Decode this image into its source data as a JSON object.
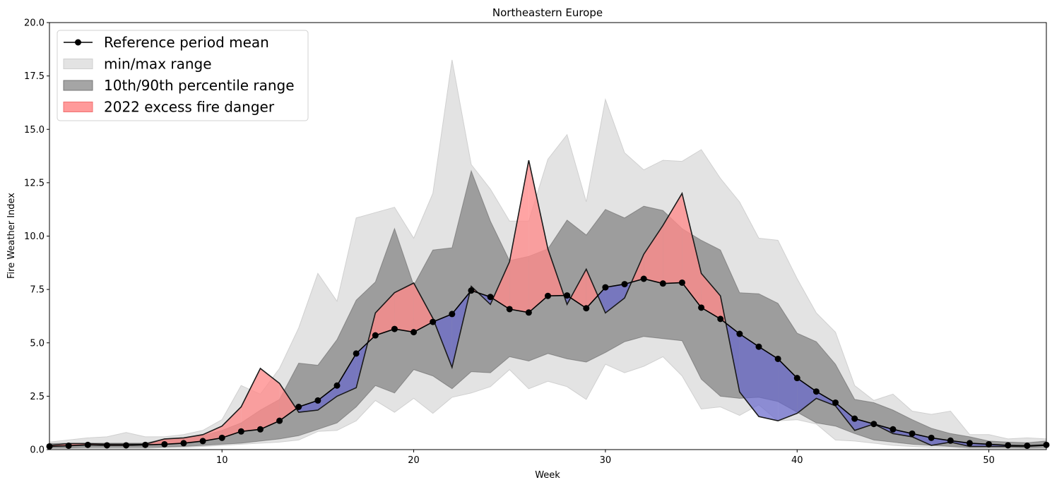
{
  "chart_data": {
    "type": "area",
    "title": "Northeastern Europe",
    "xlabel": "Week",
    "ylabel": "Fire Weather Index",
    "xlim": [
      1,
      53
    ],
    "ylim": [
      0,
      20
    ],
    "xticks": [
      10,
      20,
      30,
      40,
      50
    ],
    "yticks": [
      "0.0",
      "2.5",
      "5.0",
      "7.5",
      "10.0",
      "12.5",
      "15.0",
      "17.5",
      "20.0"
    ],
    "legend_position": "upper-left",
    "grid": false,
    "x": [
      1,
      2,
      3,
      4,
      5,
      6,
      7,
      8,
      9,
      10,
      11,
      12,
      13,
      14,
      15,
      16,
      17,
      18,
      19,
      20,
      21,
      22,
      23,
      24,
      25,
      26,
      27,
      28,
      29,
      30,
      31,
      32,
      33,
      34,
      35,
      36,
      37,
      38,
      39,
      40,
      41,
      42,
      43,
      44,
      45,
      46,
      47,
      48,
      49,
      50,
      51,
      52,
      53
    ],
    "series": [
      {
        "name": "Reference period mean",
        "kind": "line",
        "color": "#000000",
        "values": [
          0.15,
          0.18,
          0.22,
          0.2,
          0.2,
          0.22,
          0.25,
          0.3,
          0.4,
          0.55,
          0.85,
          0.95,
          1.35,
          2.0,
          2.3,
          3.0,
          4.5,
          5.35,
          5.65,
          5.5,
          5.98,
          6.35,
          7.45,
          7.15,
          6.58,
          6.42,
          7.2,
          7.22,
          6.62,
          7.6,
          7.75,
          8.0,
          7.78,
          7.82,
          6.65,
          6.12,
          5.42,
          4.82,
          4.25,
          3.35,
          2.72,
          2.2,
          1.45,
          1.2,
          0.95,
          0.75,
          0.55,
          0.42,
          0.3,
          0.25,
          0.2,
          0.18,
          0.22
        ]
      },
      {
        "name": "min/max range",
        "kind": "band",
        "color": "#e3e3e3",
        "lower": [
          0.05,
          0.05,
          0.05,
          0.05,
          0.05,
          0.05,
          0.1,
          0.1,
          0.15,
          0.2,
          0.25,
          0.3,
          0.35,
          0.45,
          0.85,
          0.9,
          1.35,
          2.3,
          1.75,
          2.4,
          1.7,
          2.45,
          2.65,
          2.95,
          3.75,
          2.85,
          3.2,
          2.95,
          2.35,
          4.0,
          3.6,
          3.9,
          4.35,
          3.45,
          1.9,
          2.0,
          1.6,
          2.1,
          1.35,
          1.4,
          1.2,
          0.45,
          0.4,
          0.3,
          0.2,
          0.15,
          0.1,
          0.1,
          0.05,
          0.05,
          0.05,
          0.05,
          0.05
        ],
        "upper": [
          0.35,
          0.45,
          0.55,
          0.6,
          0.8,
          0.6,
          0.6,
          0.7,
          0.9,
          1.4,
          3.0,
          2.6,
          3.8,
          5.7,
          8.25,
          6.95,
          10.85,
          11.1,
          11.35,
          9.9,
          12.0,
          18.25,
          13.35,
          12.2,
          10.7,
          10.7,
          13.6,
          14.75,
          11.6,
          16.4,
          13.9,
          13.1,
          13.55,
          13.5,
          14.05,
          12.7,
          11.6,
          9.9,
          9.8,
          8.0,
          6.4,
          5.5,
          3.0,
          2.3,
          2.6,
          1.8,
          1.65,
          1.8,
          0.7,
          0.7,
          0.5,
          0.55,
          0.5
        ]
      },
      {
        "name": "10th/90th percentile range",
        "kind": "band",
        "color": "#6e6e6e",
        "lower": [
          0.08,
          0.08,
          0.1,
          0.1,
          0.1,
          0.1,
          0.12,
          0.15,
          0.2,
          0.25,
          0.3,
          0.4,
          0.5,
          0.65,
          0.95,
          1.25,
          2.0,
          3.0,
          2.65,
          3.75,
          3.45,
          2.85,
          3.65,
          3.6,
          4.35,
          4.15,
          4.5,
          4.25,
          4.1,
          4.55,
          5.05,
          5.3,
          5.2,
          5.1,
          3.3,
          2.5,
          2.4,
          2.45,
          2.25,
          1.75,
          1.25,
          1.1,
          0.75,
          0.45,
          0.35,
          0.25,
          0.2,
          0.15,
          0.1,
          0.1,
          0.1,
          0.08,
          0.1
        ],
        "upper": [
          0.28,
          0.3,
          0.3,
          0.3,
          0.3,
          0.3,
          0.5,
          0.55,
          0.65,
          0.9,
          1.25,
          1.85,
          2.35,
          4.05,
          3.95,
          5.15,
          7.0,
          7.85,
          10.35,
          7.7,
          9.35,
          9.45,
          13.05,
          10.7,
          8.85,
          9.05,
          9.4,
          10.75,
          10.05,
          11.25,
          10.85,
          11.4,
          11.2,
          10.35,
          9.8,
          9.35,
          7.35,
          7.3,
          6.85,
          5.45,
          5.05,
          4.0,
          2.35,
          2.2,
          1.85,
          1.4,
          1.0,
          0.75,
          0.6,
          0.4,
          0.35,
          0.32,
          0.4
        ]
      },
      {
        "name": "2022",
        "kind": "line",
        "color": "#1a1a1a",
        "values": [
          0.2,
          0.28,
          0.28,
          0.25,
          0.25,
          0.25,
          0.5,
          0.55,
          0.7,
          1.1,
          2.0,
          3.8,
          3.1,
          1.75,
          1.85,
          2.5,
          2.9,
          6.4,
          7.35,
          7.8,
          6.15,
          3.85,
          7.65,
          6.8,
          8.8,
          13.55,
          9.4,
          6.8,
          8.45,
          6.4,
          7.1,
          9.15,
          10.5,
          12.0,
          8.25,
          7.2,
          2.7,
          1.55,
          1.35,
          1.7,
          2.4,
          2.05,
          0.9,
          1.2,
          0.75,
          0.6,
          0.2,
          0.35,
          0.15,
          0.15,
          0.15,
          0.15,
          0.2
        ]
      }
    ],
    "fills": [
      {
        "name": "2022 excess fire danger",
        "color": "#ff8a8a"
      },
      {
        "name": "2022 below reference",
        "color": "#6666cc"
      }
    ]
  },
  "legend": {
    "items": [
      {
        "label": "Reference period mean",
        "swatch": "line-marker",
        "color": "#000000"
      },
      {
        "label": "min/max range",
        "swatch": "patch",
        "color": "#e3e3e3"
      },
      {
        "label": "10th/90th percentile range",
        "swatch": "patch",
        "color": "#a5a5a5"
      },
      {
        "label": "2022 excess fire danger",
        "swatch": "patch",
        "color": "#ff9a9a"
      }
    ]
  }
}
